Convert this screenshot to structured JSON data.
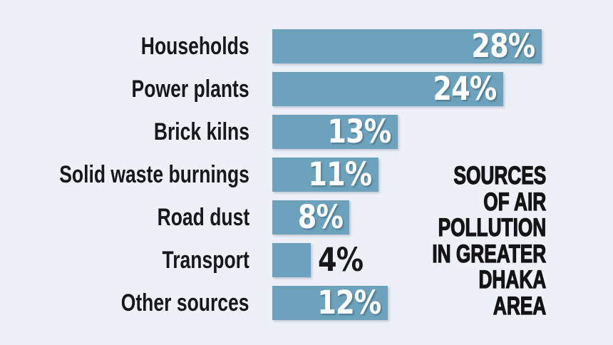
{
  "chart_data": {
    "type": "bar",
    "orientation": "horizontal",
    "title": "SOURCES OF AIR POLLUTION IN GREATER DHAKA AREA",
    "title_lines": [
      "SOURCES",
      "OF AIR",
      "POLLUTION",
      "IN GREATER",
      "DHAKA",
      "AREA"
    ],
    "categories": [
      "Households",
      "Power plants",
      "Brick kilns",
      "Solid waste burnings",
      "Road dust",
      "Transport",
      "Other sources"
    ],
    "values": [
      28,
      24,
      13,
      11,
      8,
      4,
      12
    ],
    "value_labels": [
      "28%",
      "24%",
      "13%",
      "11%",
      "8%",
      "4%",
      "12%"
    ],
    "unit": "%",
    "xlim": [
      0,
      28
    ],
    "grid": false,
    "legend": false,
    "value_label_placement_outside_for": [
      "Transport"
    ],
    "colors": {
      "bar": "#6da2bc",
      "background": "#eef0f8",
      "value_inside": "#ffffff",
      "value_outside": "#18181a",
      "category_label": "#17181c",
      "title": "#141414"
    }
  }
}
